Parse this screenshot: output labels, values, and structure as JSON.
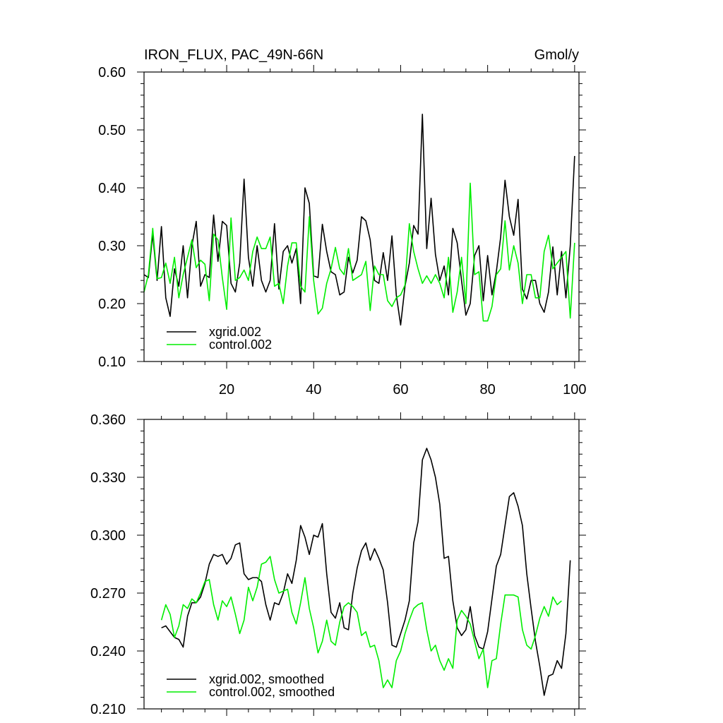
{
  "chart_data": [
    {
      "type": "line",
      "title_left": "IRON_FLUX, PAC_49N-66N",
      "title_right": "Gmol/y",
      "xlim": [
        1,
        101
      ],
      "ylim": [
        0.1,
        0.6
      ],
      "yticks": [
        0.1,
        0.2,
        0.3,
        0.4,
        0.5,
        0.6
      ],
      "ytick_labels": [
        "0.10",
        "0.20",
        "0.30",
        "0.40",
        "0.50",
        "0.60"
      ],
      "xticks": [
        20,
        40,
        60,
        80,
        100
      ],
      "xtick_labels": [
        "20",
        "40",
        "60",
        "80",
        "100"
      ],
      "legend_position": "bottom-left",
      "series": [
        {
          "name": "xgrid.002",
          "color": "#000000",
          "x_start": 1,
          "values": [
            0.25,
            0.245,
            0.32,
            0.24,
            0.333,
            0.21,
            0.178,
            0.26,
            0.23,
            0.3,
            0.21,
            0.3,
            0.342,
            0.23,
            0.25,
            0.245,
            0.353,
            0.273,
            0.342,
            0.335,
            0.235,
            0.22,
            0.27,
            0.415,
            0.28,
            0.23,
            0.3,
            0.24,
            0.22,
            0.24,
            0.338,
            0.225,
            0.29,
            0.3,
            0.27,
            0.295,
            0.2,
            0.4,
            0.373,
            0.248,
            0.245,
            0.337,
            0.29,
            0.255,
            0.25,
            0.215,
            0.22,
            0.28,
            0.253,
            0.275,
            0.35,
            0.343,
            0.31,
            0.24,
            0.235,
            0.288,
            0.24,
            0.317,
            0.215,
            0.163,
            0.23,
            0.27,
            0.335,
            0.32,
            0.527,
            0.295,
            0.382,
            0.285,
            0.24,
            0.265,
            0.215,
            0.33,
            0.305,
            0.24,
            0.18,
            0.2,
            0.283,
            0.3,
            0.205,
            0.283,
            0.215,
            0.255,
            0.315,
            0.413,
            0.35,
            0.318,
            0.38,
            0.225,
            0.208,
            0.24,
            0.24,
            0.2,
            0.185,
            0.22,
            0.298,
            0.215,
            0.29,
            0.21,
            0.3,
            0.455
          ]
        },
        {
          "name": "control.002",
          "color": "#00ee00",
          "x_start": 1,
          "values": [
            0.22,
            0.25,
            0.33,
            0.243,
            0.245,
            0.27,
            0.235,
            0.28,
            0.21,
            0.25,
            0.28,
            0.31,
            0.262,
            0.275,
            0.268,
            0.205,
            0.32,
            0.31,
            0.245,
            0.19,
            0.348,
            0.24,
            0.245,
            0.258,
            0.24,
            0.29,
            0.315,
            0.295,
            0.295,
            0.315,
            0.23,
            0.235,
            0.2,
            0.265,
            0.305,
            0.305,
            0.23,
            0.22,
            0.35,
            0.24,
            0.182,
            0.192,
            0.235,
            0.26,
            0.297,
            0.26,
            0.25,
            0.295,
            0.24,
            0.245,
            0.25,
            0.273,
            0.188,
            0.265,
            0.25,
            0.25,
            0.205,
            0.195,
            0.21,
            0.215,
            0.232,
            0.338,
            0.29,
            0.26,
            0.235,
            0.248,
            0.235,
            0.25,
            0.235,
            0.21,
            0.28,
            0.185,
            0.22,
            0.28,
            0.2,
            0.408,
            0.25,
            0.255,
            0.17,
            0.17,
            0.195,
            0.25,
            0.26,
            0.343,
            0.258,
            0.3,
            0.27,
            0.2,
            0.25,
            0.25,
            0.21,
            0.21,
            0.29,
            0.318,
            0.26,
            0.27,
            0.28,
            0.29,
            0.175,
            0.305
          ]
        }
      ]
    },
    {
      "type": "line",
      "xlim": [
        1,
        101
      ],
      "ylim": [
        0.21,
        0.36
      ],
      "yticks": [
        0.21,
        0.24,
        0.27,
        0.3,
        0.33,
        0.36
      ],
      "ytick_labels": [
        "0.210",
        "0.240",
        "0.270",
        "0.300",
        "0.330",
        "0.360"
      ],
      "xticks": [
        20,
        40,
        60,
        80,
        100
      ],
      "legend_position": "bottom-left",
      "series": [
        {
          "name": "xgrid.002, smoothed",
          "color": "#000000",
          "x_start": 5,
          "values": [
            0.252,
            0.253,
            0.25,
            0.247,
            0.246,
            0.242,
            0.258,
            0.265,
            0.265,
            0.268,
            0.275,
            0.285,
            0.29,
            0.289,
            0.29,
            0.285,
            0.288,
            0.295,
            0.296,
            0.28,
            0.277,
            0.278,
            0.278,
            0.276,
            0.264,
            0.256,
            0.265,
            0.264,
            0.27,
            0.28,
            0.275,
            0.287,
            0.305,
            0.299,
            0.29,
            0.3,
            0.299,
            0.306,
            0.28,
            0.26,
            0.257,
            0.265,
            0.252,
            0.251,
            0.27,
            0.283,
            0.292,
            0.296,
            0.287,
            0.293,
            0.288,
            0.282,
            0.265,
            0.243,
            0.242,
            0.249,
            0.256,
            0.266,
            0.296,
            0.307,
            0.339,
            0.345,
            0.339,
            0.33,
            0.316,
            0.288,
            0.289,
            0.266,
            0.252,
            0.248,
            0.251,
            0.263,
            0.248,
            0.242,
            0.241,
            0.25,
            0.267,
            0.284,
            0.29,
            0.305,
            0.32,
            0.322,
            0.315,
            0.305,
            0.28,
            0.262,
            0.245,
            0.232,
            0.217,
            0.227,
            0.228,
            0.235,
            0.231,
            0.249,
            0.287
          ]
        },
        {
          "name": "control.002, smoothed",
          "color": "#00ee00",
          "x_start": 5,
          "values": [
            0.256,
            0.264,
            0.259,
            0.247,
            0.253,
            0.264,
            0.262,
            0.267,
            0.265,
            0.27,
            0.276,
            0.277,
            0.264,
            0.256,
            0.266,
            0.263,
            0.268,
            0.259,
            0.249,
            0.256,
            0.273,
            0.266,
            0.273,
            0.285,
            0.286,
            0.289,
            0.277,
            0.27,
            0.271,
            0.272,
            0.26,
            0.254,
            0.265,
            0.278,
            0.262,
            0.252,
            0.239,
            0.245,
            0.256,
            0.245,
            0.243,
            0.255,
            0.263,
            0.265,
            0.263,
            0.26,
            0.248,
            0.25,
            0.242,
            0.243,
            0.235,
            0.221,
            0.225,
            0.221,
            0.235,
            0.24,
            0.249,
            0.256,
            0.262,
            0.264,
            0.265,
            0.251,
            0.24,
            0.243,
            0.235,
            0.23,
            0.236,
            0.231,
            0.256,
            0.261,
            0.258,
            0.254,
            0.245,
            0.236,
            0.241,
            0.221,
            0.235,
            0.236,
            0.254,
            0.269,
            0.269,
            0.269,
            0.268,
            0.251,
            0.243,
            0.241,
            0.248,
            0.257,
            0.263,
            0.258,
            0.268,
            0.264,
            0.266
          ]
        }
      ]
    }
  ]
}
